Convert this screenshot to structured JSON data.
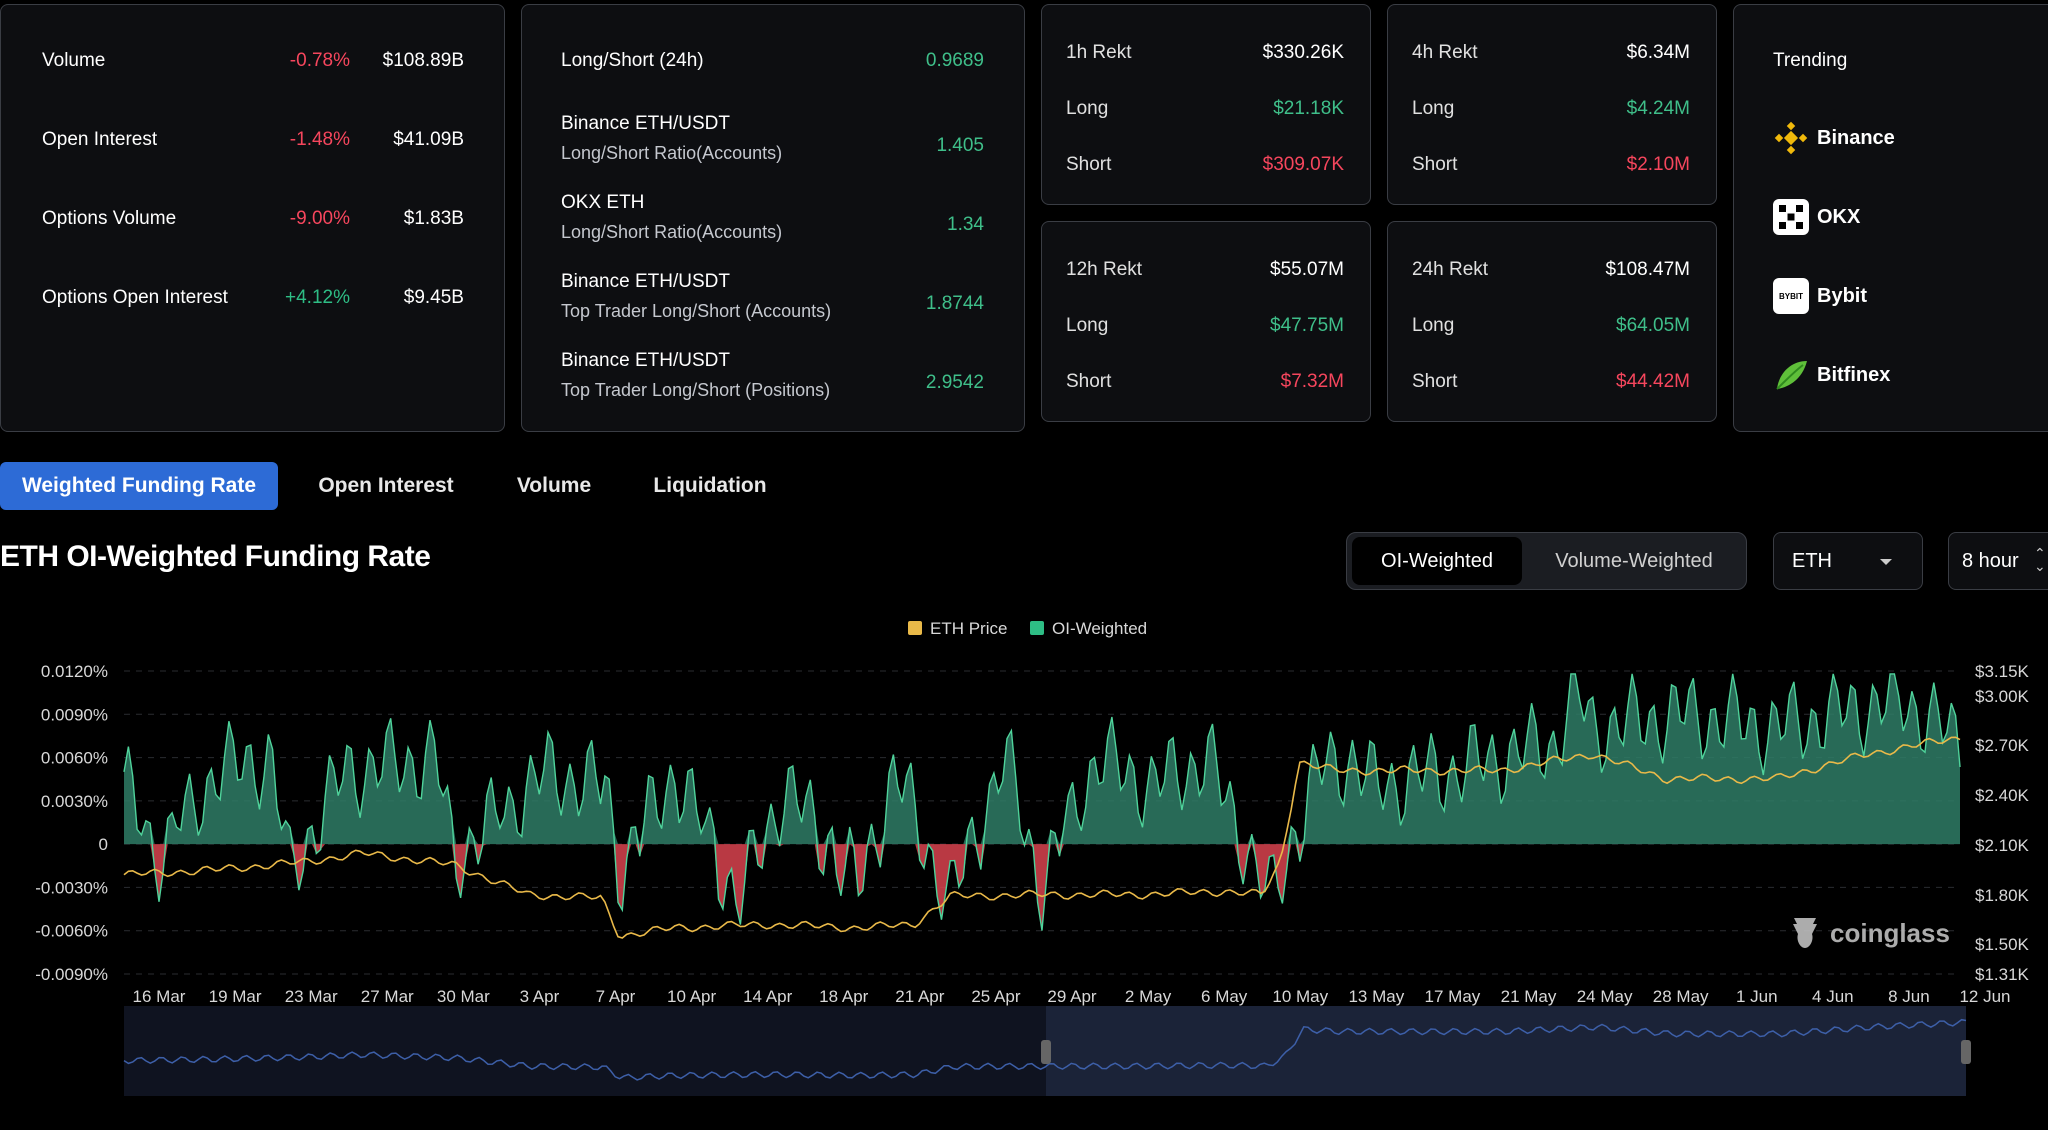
{
  "market": [
    {
      "label": "Volume",
      "change": "-0.78%",
      "value": "$108.89B",
      "dir": "neg"
    },
    {
      "label": "Open Interest",
      "change": "-1.48%",
      "value": "$41.09B",
      "dir": "neg"
    },
    {
      "label": "Options Volume",
      "change": "-9.00%",
      "value": "$1.83B",
      "dir": "neg"
    },
    {
      "label": "Options Open Interest",
      "change": "+4.12%",
      "value": "$9.45B",
      "dir": "pos"
    }
  ],
  "ratios": {
    "top_label": "Long/Short (24h)",
    "top_value": "0.9689",
    "items": [
      {
        "exchange": "Binance ETH/USDT",
        "metric": "Long/Short Ratio(Accounts)",
        "value": "1.405"
      },
      {
        "exchange": "OKX ETH",
        "metric": "Long/Short Ratio(Accounts)",
        "value": "1.34"
      },
      {
        "exchange": "Binance ETH/USDT",
        "metric": "Top Trader Long/Short (Accounts)",
        "value": "1.8744"
      },
      {
        "exchange": "Binance ETH/USDT",
        "metric": "Top Trader Long/Short (Positions)",
        "value": "2.9542"
      }
    ]
  },
  "rekt": [
    {
      "title": "1h Rekt",
      "total": "$330.26K",
      "long_label": "Long",
      "long": "$21.18K",
      "short_label": "Short",
      "short": "$309.07K"
    },
    {
      "title": "4h Rekt",
      "total": "$6.34M",
      "long_label": "Long",
      "long": "$4.24M",
      "short_label": "Short",
      "short": "$2.10M"
    },
    {
      "title": "12h Rekt",
      "total": "$55.07M",
      "long_label": "Long",
      "long": "$47.75M",
      "short_label": "Short",
      "short": "$7.32M"
    },
    {
      "title": "24h Rekt",
      "total": "$108.47M",
      "long_label": "Long",
      "long": "$64.05M",
      "short_label": "Short",
      "short": "$44.42M"
    }
  ],
  "trending": {
    "title": "Trending",
    "items": [
      {
        "name": "Binance",
        "icon": "binance-icon"
      },
      {
        "name": "OKX",
        "icon": "okx-icon"
      },
      {
        "name": "Bybit",
        "icon": "bybit-icon",
        "icon_text": "BYBIT"
      },
      {
        "name": "Bitfinex",
        "icon": "bitfinex-icon"
      }
    ]
  },
  "tabs": [
    "Weighted Funding Rate",
    "Open Interest",
    "Volume",
    "Liquidation"
  ],
  "chart_header": {
    "title": "ETH OI-Weighted Funding Rate",
    "weight_options": [
      "OI-Weighted",
      "Volume-Weighted"
    ],
    "coin": "ETH",
    "interval": "8 hour"
  },
  "watermark": "coinglass",
  "colors": {
    "accent": "#2d6bd6",
    "positive": "#2ebd85",
    "negative": "#f6465d",
    "price_line": "#e9b949",
    "funding_fill": "#2f7d66"
  },
  "chart_data": {
    "type": "area",
    "legend": [
      "ETH Price",
      "OI-Weighted"
    ],
    "legend_placement": "top-center",
    "y_left_ticks": [
      "0.0120%",
      "0.0090%",
      "0.0060%",
      "0.0030%",
      "0",
      "-0.0030%",
      "-0.0060%",
      "-0.0090%"
    ],
    "y_left_range": [
      -0.009,
      0.012
    ],
    "y_right_ticks": [
      "$3.15K",
      "$3.00K",
      "$2.70K",
      "$2.40K",
      "$2.10K",
      "$1.80K",
      "$1.50K",
      "$1.31K"
    ],
    "x_ticks": [
      "16 Mar",
      "19 Mar",
      "23 Mar",
      "27 Mar",
      "30 Mar",
      "3 Apr",
      "7 Apr",
      "10 Apr",
      "14 Apr",
      "18 Apr",
      "21 Apr",
      "25 Apr",
      "29 Apr",
      "2 May",
      "6 May",
      "10 May",
      "13 May",
      "17 May",
      "21 May",
      "24 May",
      "28 May",
      "1 Jun",
      "4 Jun",
      "8 Jun",
      "12 Jun"
    ],
    "series": [
      {
        "name": "OI-Weighted",
        "unit": "%",
        "anchors": [
          [
            0,
            0.004
          ],
          [
            0.02,
            -0.001
          ],
          [
            0.05,
            0.005
          ],
          [
            0.08,
            0.006
          ],
          [
            0.09,
            -0.002
          ],
          [
            0.12,
            0.005
          ],
          [
            0.17,
            0.006
          ],
          [
            0.18,
            -0.001
          ],
          [
            0.23,
            0.005
          ],
          [
            0.26,
            0.004
          ],
          [
            0.26,
            0.006
          ],
          [
            0.27,
            -0.002
          ],
          [
            0.3,
            0.005
          ],
          [
            0.335,
            -0.004
          ],
          [
            0.36,
            0.004
          ],
          [
            0.4,
            -0.003
          ],
          [
            0.42,
            0.005
          ],
          [
            0.45,
            -0.004
          ],
          [
            0.48,
            0.006
          ],
          [
            0.5,
            -0.003
          ],
          [
            0.53,
            0.006
          ],
          [
            0.56,
            0.004
          ],
          [
            0.59,
            0.006
          ],
          [
            0.625,
            -0.004
          ],
          [
            0.65,
            0.005
          ],
          [
            0.67,
            0.006
          ],
          [
            0.68,
            0.004
          ],
          [
            0.72,
            0.005
          ],
          [
            0.75,
            0.006
          ],
          [
            0.78,
            0.007
          ],
          [
            0.79,
            0.011
          ],
          [
            0.8,
            0.008
          ],
          [
            0.85,
            0.009
          ],
          [
            0.9,
            0.008
          ],
          [
            0.93,
            0.009
          ],
          [
            0.97,
            0.01
          ],
          [
            1,
            0.007
          ]
        ]
      },
      {
        "name": "ETH Price",
        "unit": "$",
        "anchors": [
          [
            0,
            1920
          ],
          [
            0.05,
            1950
          ],
          [
            0.1,
            2000
          ],
          [
            0.13,
            2050
          ],
          [
            0.18,
            1980
          ],
          [
            0.22,
            1800
          ],
          [
            0.26,
            1780
          ],
          [
            0.27,
            1550
          ],
          [
            0.3,
            1600
          ],
          [
            0.35,
            1620
          ],
          [
            0.4,
            1600
          ],
          [
            0.43,
            1620
          ],
          [
            0.45,
            1790
          ],
          [
            0.5,
            1800
          ],
          [
            0.55,
            1800
          ],
          [
            0.6,
            1820
          ],
          [
            0.62,
            1800
          ],
          [
            0.63,
            2000
          ],
          [
            0.64,
            2600
          ],
          [
            0.66,
            2550
          ],
          [
            0.7,
            2550
          ],
          [
            0.75,
            2550
          ],
          [
            0.8,
            2650
          ],
          [
            0.84,
            2500
          ],
          [
            0.9,
            2500
          ],
          [
            0.95,
            2650
          ],
          [
            1,
            2750
          ]
        ]
      }
    ]
  }
}
